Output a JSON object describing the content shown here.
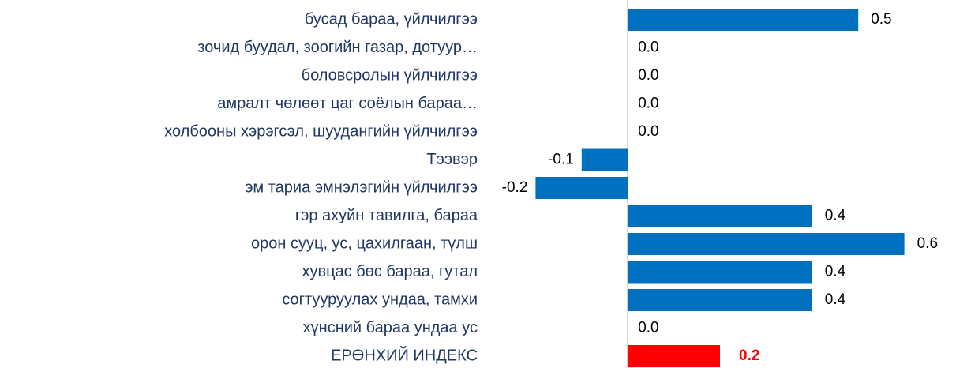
{
  "chart_data": {
    "type": "bar",
    "orientation": "horizontal",
    "categories": [
      "бусад бараа, үйлчилгээ",
      "зочид буудал, зоогийн газар, дотуур…",
      "боловсролын үйлчилгээ",
      "амралт чөлөөт цаг соёлын бараа…",
      "холбооны хэрэгсэл, шуудангийн үйлчилгээ",
      "Тээвэр",
      "эм тариа эмнэлэгийн үйлчилгээ",
      "гэр ахуйн тавилга, бараа",
      "орон сууц, ус, цахилгаан, түлш",
      "хувцас бөс бараа, гутал",
      "согтууруулах ундаа, тамхи",
      "хүнсний бараа ундаа ус",
      "ЕРӨНХИЙ ИНДЕКС"
    ],
    "values": [
      0.5,
      0,
      0,
      0,
      0,
      -0.1,
      -0.2,
      0.4,
      0.6,
      0.4,
      0.4,
      0,
      0.2
    ],
    "value_labels": [
      "0.5",
      "0.0",
      "0.0",
      "0.0",
      "0.0",
      "-0.1",
      "-0.2",
      "0.4",
      "0.6",
      "0.4",
      "0.4",
      "0.0",
      "0.2"
    ],
    "colors": [
      "#0070c0",
      "#0070c0",
      "#0070c0",
      "#0070c0",
      "#0070c0",
      "#0070c0",
      "#0070c0",
      "#0070c0",
      "#0070c0",
      "#0070c0",
      "#0070c0",
      "#0070c0",
      "#ff0000"
    ],
    "xlim": [
      -0.3,
      0.7
    ]
  }
}
